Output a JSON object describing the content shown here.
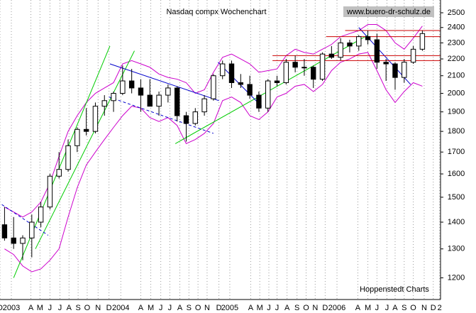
{
  "chart_data": {
    "type": "candlestick",
    "title": "Nasdaq compx Wochenchart",
    "watermark": "www.buero-dr-schulz.de",
    "source": "Hoppenstedt Charts",
    "log_scale": true,
    "xgrid": true,
    "color": "#000000",
    "x": [
      0.5,
      1.5,
      2.5,
      3.5,
      4.5,
      5.5,
      6.5,
      7.5,
      8.5,
      9.5,
      10.5,
      11.5,
      12.5,
      13.5,
      14.5,
      15.5,
      16.5,
      17.5,
      18.5,
      19.5,
      20.5,
      21.5,
      22.5,
      23.5,
      24.5,
      25.5,
      26.5,
      27.5,
      28.5,
      29.5,
      30.5,
      31.5,
      32.5,
      33.5,
      34.5,
      35.5,
      36.5,
      37.5,
      38.5,
      39.5,
      40.5,
      41.5,
      42.5,
      43.5,
      44.5,
      45.5,
      46.5
    ],
    "open": [
      1390,
      1340,
      1320,
      1340,
      1400,
      1460,
      1590,
      1620,
      1730,
      1810,
      1800,
      1930,
      1960,
      2000,
      2070,
      2030,
      1990,
      1930,
      1990,
      2030,
      1880,
      1840,
      1900,
      1970,
      2100,
      2170,
      2060,
      2050,
      1990,
      1920,
      2070,
      2060,
      2180,
      2150,
      2150,
      2080,
      2230,
      2210,
      2300,
      2280,
      2340,
      2320,
      2180,
      2170,
      2090,
      2180,
      2260
    ],
    "high": [
      1460,
      1420,
      1350,
      1430,
      1480,
      1600,
      1700,
      1760,
      1820,
      1920,
      1950,
      1990,
      2010,
      2160,
      2140,
      2080,
      2080,
      2010,
      2050,
      2040,
      1900,
      1920,
      1990,
      2110,
      2190,
      2190,
      2110,
      2100,
      2010,
      2080,
      2100,
      2200,
      2220,
      2200,
      2160,
      2240,
      2280,
      2330,
      2320,
      2350,
      2380,
      2360,
      2200,
      2180,
      2200,
      2280,
      2380
    ],
    "low": [
      1330,
      1300,
      1260,
      1270,
      1380,
      1450,
      1580,
      1610,
      1700,
      1780,
      1790,
      1880,
      1900,
      1990,
      2000,
      1900,
      1930,
      1880,
      1950,
      1850,
      1750,
      1830,
      1880,
      1960,
      2080,
      2030,
      2030,
      1970,
      1900,
      1900,
      2040,
      2050,
      2120,
      2100,
      2030,
      2070,
      2200,
      2190,
      2240,
      2250,
      2290,
      2140,
      2070,
      2020,
      2060,
      2170,
      2250
    ],
    "close": [
      1340,
      1320,
      1340,
      1400,
      1460,
      1590,
      1620,
      1730,
      1810,
      1800,
      1930,
      1960,
      2000,
      2070,
      2030,
      1990,
      1930,
      1990,
      2030,
      1880,
      1840,
      1900,
      1970,
      2100,
      2170,
      2060,
      2050,
      1990,
      1920,
      2070,
      2060,
      2180,
      2150,
      2150,
      2080,
      2230,
      2210,
      2300,
      2280,
      2340,
      2320,
      2180,
      2170,
      2090,
      2180,
      2260,
      2360
    ],
    "bands": {
      "color": "#cc00cc",
      "upper": [
        1460,
        1440,
        1420,
        1440,
        1480,
        1560,
        1680,
        1800,
        1880,
        1950,
        2000,
        2030,
        2060,
        2170,
        2190,
        2170,
        2150,
        2110,
        2090,
        2080,
        2060,
        2000,
        2020,
        2120,
        2210,
        2230,
        2200,
        2170,
        2120,
        2130,
        2140,
        2220,
        2260,
        2240,
        2230,
        2260,
        2290,
        2340,
        2360,
        2380,
        2420,
        2420,
        2380,
        2300,
        2260,
        2330,
        2410
      ],
      "lower": [
        1300,
        1280,
        1240,
        1220,
        1230,
        1260,
        1300,
        1420,
        1540,
        1640,
        1700,
        1760,
        1820,
        1880,
        1930,
        1920,
        1870,
        1850,
        1870,
        1830,
        1740,
        1760,
        1790,
        1840,
        1960,
        1980,
        1950,
        1880,
        1860,
        1900,
        1980,
        2000,
        2040,
        2050,
        2010,
        2050,
        2130,
        2180,
        2200,
        2230,
        2240,
        2130,
        2020,
        1950,
        2010,
        2060,
        2040
      ]
    },
    "trend_lines": [
      {
        "color": "#00cc00",
        "x": [
          1.5,
          12.1
        ],
        "y": [
          1200,
          2280
        ]
      },
      {
        "color": "#00cc00",
        "x": [
          3.9,
          14.8
        ],
        "y": [
          1300,
          2250
        ]
      },
      {
        "color": "#00cc00",
        "x": [
          19.3,
          40.5
        ],
        "y": [
          1740,
          2350
        ]
      },
      {
        "color": "#0000cc",
        "x": [
          12.1,
          24.1
        ],
        "y": [
          2170,
          1960
        ]
      },
      {
        "color": "#0000cc",
        "x": [
          0.2,
          5.3
        ],
        "y": [
          1470,
          1350
        ],
        "dashed": true
      },
      {
        "color": "#0000cc",
        "x": [
          12,
          23.5
        ],
        "y": [
          1980,
          1790
        ],
        "dashed": true
      },
      {
        "color": "#0000cc",
        "x": [
          24,
          28.8
        ],
        "y": [
          2180,
          1930
        ]
      },
      {
        "color": "#0000cc",
        "x": [
          39.5,
          45.2
        ],
        "y": [
          2400,
          2050
        ]
      },
      {
        "color": "#cc0000",
        "x": [
          38,
          48.5
        ],
        "y": [
          2380,
          2380
        ]
      },
      {
        "color": "#cc0000",
        "x": [
          35.9,
          48.5
        ],
        "y": [
          2340,
          2340
        ]
      },
      {
        "color": "#cc0000",
        "x": [
          30,
          48.5
        ],
        "y": [
          2220,
          2220
        ]
      },
      {
        "color": "#cc0000",
        "x": [
          30,
          48.5
        ],
        "y": [
          2190,
          2190
        ]
      }
    ],
    "xlim": [
      0,
      48.5
    ],
    "xticks": [
      {
        "value": 0,
        "label": "D"
      },
      {
        "value": 1.25,
        "label": "2003"
      },
      {
        "value": 3.4,
        "label": "A"
      },
      {
        "value": 4.4,
        "label": "M"
      },
      {
        "value": 5.5,
        "label": "J"
      },
      {
        "value": 6.6,
        "label": "J"
      },
      {
        "value": 7.6,
        "label": "A"
      },
      {
        "value": 8.6,
        "label": "S"
      },
      {
        "value": 9.6,
        "label": "O"
      },
      {
        "value": 10.8,
        "label": "N"
      },
      {
        "value": 12,
        "label": "D"
      },
      {
        "value": 13.3,
        "label": "2004"
      },
      {
        "value": 15.5,
        "label": "A"
      },
      {
        "value": 16.6,
        "label": "M"
      },
      {
        "value": 17.7,
        "label": "J"
      },
      {
        "value": 18.7,
        "label": "J"
      },
      {
        "value": 19.8,
        "label": "A"
      },
      {
        "value": 20.8,
        "label": "S"
      },
      {
        "value": 21.8,
        "label": "O"
      },
      {
        "value": 22.8,
        "label": "N"
      },
      {
        "value": 24.1,
        "label": "D"
      },
      {
        "value": 25.3,
        "label": "2005"
      },
      {
        "value": 27.6,
        "label": "A"
      },
      {
        "value": 28.6,
        "label": "M"
      },
      {
        "value": 29.6,
        "label": "J"
      },
      {
        "value": 30.5,
        "label": "J"
      },
      {
        "value": 31.6,
        "label": "A"
      },
      {
        "value": 32.7,
        "label": "S"
      },
      {
        "value": 33.7,
        "label": "O"
      },
      {
        "value": 34.7,
        "label": "N"
      },
      {
        "value": 35.8,
        "label": "D"
      },
      {
        "value": 37.1,
        "label": "2006"
      },
      {
        "value": 39.4,
        "label": "A"
      },
      {
        "value": 40.5,
        "label": "M"
      },
      {
        "value": 41.5,
        "label": "J"
      },
      {
        "value": 42.6,
        "label": "J"
      },
      {
        "value": 43.5,
        "label": "A"
      },
      {
        "value": 44.5,
        "label": "S"
      },
      {
        "value": 45.5,
        "label": "O"
      },
      {
        "value": 46.7,
        "label": "N"
      },
      {
        "value": 47.7,
        "label": "D"
      },
      {
        "value": 48.4,
        "label": "2"
      }
    ],
    "ylim": [
      1130,
      2590
    ],
    "yticks": [
      1200,
      1300,
      1400,
      1500,
      1600,
      1700,
      1800,
      1900,
      2000,
      2100,
      2200,
      2300,
      2400,
      2500
    ]
  }
}
